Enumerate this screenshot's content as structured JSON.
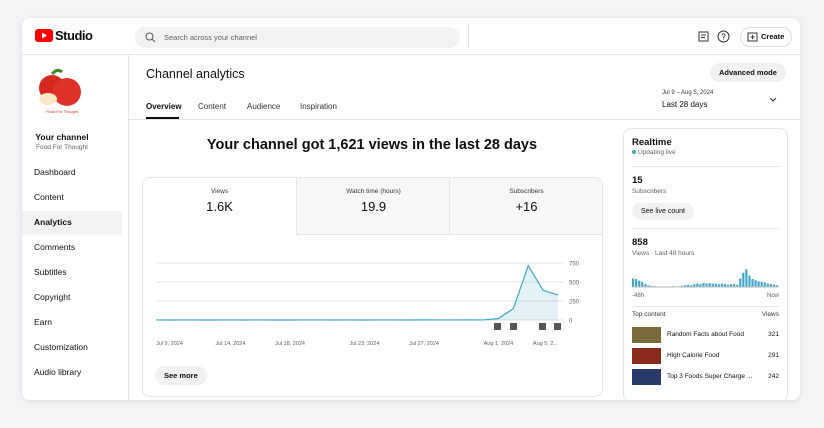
{
  "header": {
    "logo": "Studio",
    "search_placeholder": "Search across your channel",
    "create": "Create"
  },
  "sidebar": {
    "avatar_text": "Food For Thought",
    "channel_label": "Your channel",
    "channel_name": "Food For Thought",
    "items": [
      "Dashboard",
      "Content",
      "Analytics",
      "Comments",
      "Subtitles",
      "Copyright",
      "Earn",
      "Customization",
      "Audio library"
    ],
    "selected": 2
  },
  "page": {
    "title": "Channel analytics",
    "tabs": [
      "Overview",
      "Content",
      "Audience",
      "Inspiration"
    ],
    "selected_tab": 0,
    "advanced": "Advanced mode",
    "date_range": "Jul 9 – Aug 5, 2024",
    "period": "Last 28 days",
    "headline": "Your channel got 1,621 views in the last 28 days",
    "see_more": "See more"
  },
  "metrics": [
    {
      "label": "Views",
      "value": "1.6K"
    },
    {
      "label": "Watch time (hours)",
      "value": "19.9"
    },
    {
      "label": "Subscribers",
      "value": "+16"
    }
  ],
  "chart_data": [
    {
      "type": "line",
      "color": "#3ea6c9",
      "x": [
        "Jul 9, 2024",
        null,
        null,
        null,
        null,
        "Jul 14, 2024",
        null,
        null,
        null,
        "Jul 18, 2024",
        null,
        null,
        null,
        null,
        "Jul 23, 2024",
        null,
        null,
        null,
        "Jul 27, 2024",
        null,
        null,
        null,
        null,
        "Aug 1, 2024",
        null,
        null,
        null,
        "Aug 5, 2..."
      ],
      "values": [
        1,
        0,
        1,
        0,
        0,
        1,
        0,
        1,
        0,
        0,
        1,
        1,
        0,
        1,
        0,
        1,
        1,
        0,
        2,
        1,
        1,
        2,
        1,
        20,
        150,
        715,
        390,
        330
      ],
      "ylim": [
        0,
        800
      ],
      "yticks": [
        0,
        250,
        500,
        750
      ],
      "grid": true
    },
    {
      "type": "bar",
      "color": "#3ea6c9",
      "values": [
        30,
        28,
        22,
        18,
        10,
        6,
        4,
        3,
        2,
        2,
        1,
        2,
        2,
        3,
        2,
        2,
        4,
        6,
        8,
        6,
        10,
        12,
        10,
        14,
        12,
        14,
        12,
        12,
        10,
        12,
        10,
        8,
        10,
        10,
        8,
        30,
        50,
        62,
        40,
        28,
        24,
        20,
        18,
        16,
        12,
        10,
        8,
        6
      ],
      "ylim": [
        0,
        70
      ],
      "x_start": "-48h",
      "x_end": "Now"
    }
  ],
  "realtime": {
    "title": "Realtime",
    "status": "Updating live",
    "subscribers": "15",
    "subscribers_label": "Subscribers",
    "live_button": "See live count",
    "views": "858",
    "views_label": "Views · Last 48 hours",
    "top_label": "Top content",
    "views_col": "Views",
    "top": [
      {
        "title": "Random Facts about Food",
        "views": "321"
      },
      {
        "title": "High Calorie Food",
        "views": "291"
      },
      {
        "title": "Top 3 Foods Super Charge ...",
        "views": "242"
      }
    ]
  }
}
